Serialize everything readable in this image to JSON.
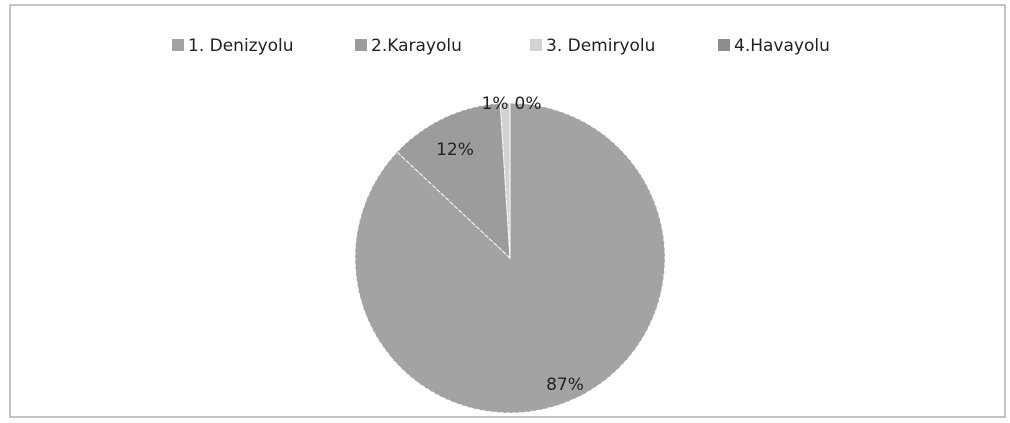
{
  "chart_data": {
    "type": "pie",
    "categories": [
      "1. Denizyolu",
      "2.Karayolu",
      "3. Demiryolu",
      "4.Havayolu"
    ],
    "values": [
      87,
      12,
      1,
      0
    ],
    "value_labels": [
      "87%",
      "12%",
      "1%",
      "0%"
    ],
    "colors": [
      "#a3a3a3",
      "#9c9c9c",
      "#d2d2d2",
      "#8c8c8c"
    ],
    "legend": "top"
  }
}
